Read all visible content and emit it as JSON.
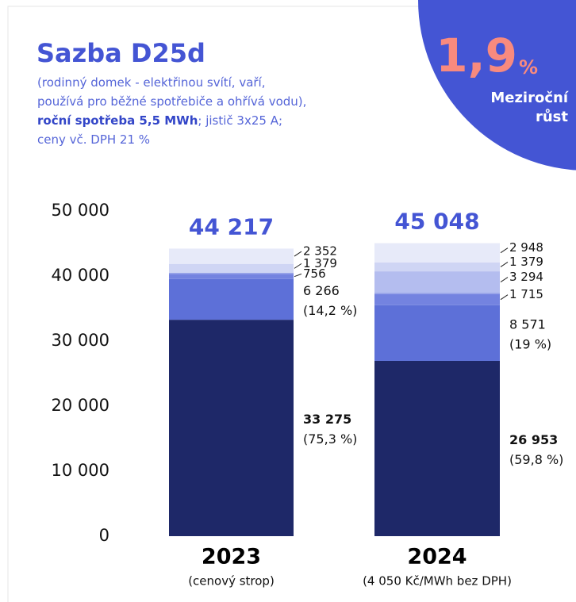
{
  "header": {
    "title": "Sazba D25d",
    "description_start": "(rodinný domek - elektřinou svítí, vaří, používá pro běžné spotřebiče a ohřívá vodu),",
    "description_bold": "roční spotřeba 5,5 MWh",
    "description_end": "; jistič 3x25 A; ceny vč. DPH 21 %"
  },
  "badge": {
    "value": "1,9",
    "unit": "%",
    "label_line1": "Meziroční",
    "label_line2": "růst"
  },
  "chart_data": {
    "type": "stacked_bar",
    "categories": [
      "2023",
      "2024"
    ],
    "category_notes": [
      "(cenový strop)",
      "(4 050 Kč/MWh bez DPH)"
    ],
    "totals": [
      44217,
      45048
    ],
    "total_labels": [
      "44 217",
      "45 048"
    ],
    "ylim": [
      0,
      50000
    ],
    "yticks": [
      0,
      {
        "value": 10000,
        "label": "10 000"
      },
      {
        "value": 20000,
        "label": "20 000"
      },
      {
        "value": 30000,
        "label": "30 000"
      },
      {
        "value": 40000,
        "label": "40 000"
      },
      {
        "value": 50000,
        "label": "50 000"
      }
    ],
    "grid": false,
    "series": [
      {
        "color": "#1e2868",
        "values": [
          33275,
          26953
        ],
        "value_labels": [
          "33 275",
          "26 953"
        ],
        "share_labels": [
          "(75,3 %)",
          "(59,8 %)"
        ]
      },
      {
        "color": "#5d70d8",
        "values": [
          6266,
          8571
        ],
        "value_labels": [
          "6 266",
          "8 571"
        ],
        "share_labels": [
          "(14,2 %)",
          "(19 %)"
        ]
      },
      {
        "color": "#7483e0",
        "values": [
          756,
          1715
        ],
        "value_labels": [
          "756",
          "1 715"
        ]
      },
      {
        "color": "#95a1e8",
        "values": [
          188,
          188
        ]
      },
      {
        "color": "#b4bdef",
        "values": [
          null,
          3294
        ],
        "value_labels": [
          null,
          "3 294"
        ]
      },
      {
        "color": "#cfd5f4",
        "values": [
          1379,
          1379
        ],
        "value_labels": [
          "1 379",
          "1 379"
        ]
      },
      {
        "color": "#e7eaf9",
        "values": [
          2352,
          2948
        ],
        "value_labels": [
          "2 352",
          "2 948"
        ]
      }
    ]
  }
}
